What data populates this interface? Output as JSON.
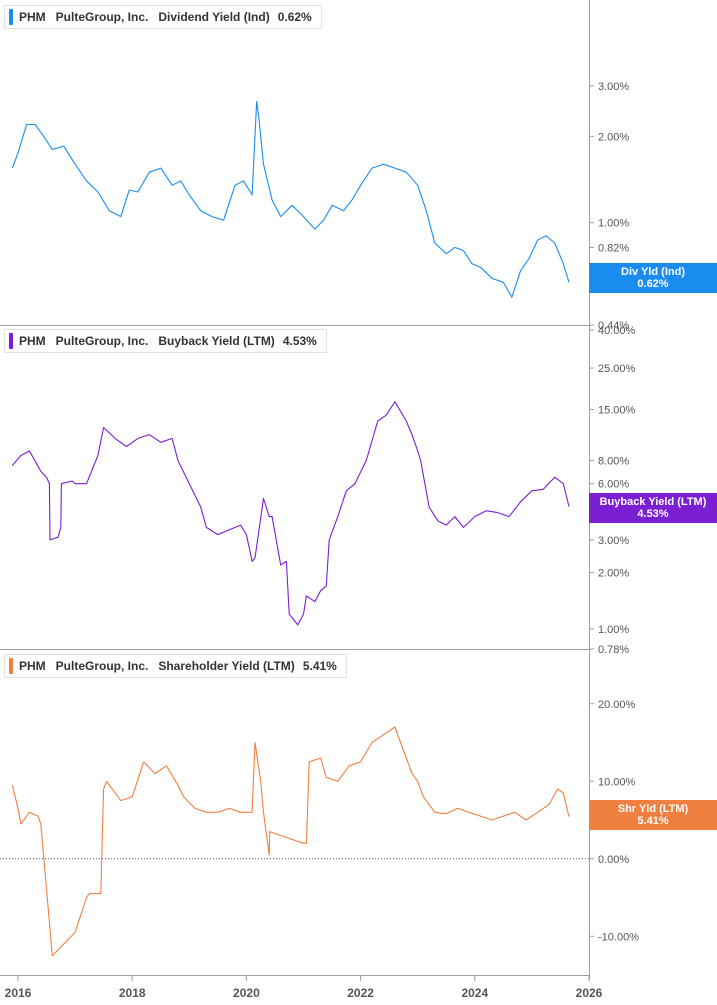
{
  "chart_data": [
    {
      "type": "line",
      "ticker": "PHM",
      "company": "PulteGroup, Inc.",
      "metric": "Dividend Yield (Ind)",
      "current_value_label": "0.62%",
      "badge_label": "Div Yld (Ind)",
      "color": "#1a8cf0",
      "scale": "log",
      "ylim": [
        0.44,
        4.0
      ],
      "yticks": [
        {
          "value": 3.0,
          "label": "3.00%"
        },
        {
          "value": 2.0,
          "label": "2.00%"
        },
        {
          "value": 1.0,
          "label": "1.00%"
        },
        {
          "value": 0.82,
          "label": "0.82%"
        },
        {
          "value": 0.44,
          "label": "0.44%"
        }
      ],
      "series": [
        {
          "x": [
            2015.9,
            2016.0,
            2016.15,
            2016.3,
            2016.45,
            2016.6,
            2016.8,
            2017.0,
            2017.2,
            2017.4,
            2017.6,
            2017.8,
            2017.95,
            2018.1,
            2018.3,
            2018.5,
            2018.7,
            2018.85,
            2019.0,
            2019.2,
            2019.4,
            2019.6,
            2019.8,
            2019.95,
            2020.1,
            2020.18,
            2020.22,
            2020.3,
            2020.45,
            2020.6,
            2020.8,
            2021.0,
            2021.2,
            2021.35,
            2021.5,
            2021.7,
            2021.85,
            2022.0,
            2022.2,
            2022.4,
            2022.6,
            2022.8,
            2023.0,
            2023.15,
            2023.3,
            2023.5,
            2023.65,
            2023.8,
            2023.95,
            2024.1,
            2024.3,
            2024.5,
            2024.65,
            2024.8,
            2024.95,
            2025.1,
            2025.25,
            2025.4,
            2025.55,
            2025.65
          ],
          "values": [
            1.55,
            1.75,
            2.2,
            2.2,
            2.0,
            1.8,
            1.85,
            1.6,
            1.4,
            1.28,
            1.1,
            1.05,
            1.3,
            1.28,
            1.5,
            1.55,
            1.35,
            1.4,
            1.25,
            1.1,
            1.05,
            1.02,
            1.35,
            1.4,
            1.25,
            2.65,
            2.3,
            1.6,
            1.2,
            1.05,
            1.15,
            1.05,
            0.95,
            1.02,
            1.15,
            1.1,
            1.2,
            1.35,
            1.55,
            1.6,
            1.55,
            1.5,
            1.35,
            1.1,
            0.85,
            0.78,
            0.82,
            0.8,
            0.72,
            0.7,
            0.64,
            0.62,
            0.55,
            0.68,
            0.75,
            0.87,
            0.9,
            0.85,
            0.72,
            0.62
          ]
        }
      ]
    },
    {
      "type": "line",
      "ticker": "PHM",
      "company": "PulteGroup, Inc.",
      "metric": "Buyback Yield (LTM)",
      "current_value_label": "4.53%",
      "badge_label": "Buyback Yield (LTM)",
      "color": "#7a1fd2",
      "scale": "log",
      "ylim": [
        0.78,
        40.0
      ],
      "yticks": [
        {
          "value": 40.0,
          "label": "40.00%"
        },
        {
          "value": 25.0,
          "label": "25.00%"
        },
        {
          "value": 15.0,
          "label": "15.00%"
        },
        {
          "value": 8.0,
          "label": "8.00%"
        },
        {
          "value": 6.0,
          "label": "6.00%"
        },
        {
          "value": 3.0,
          "label": "3.00%"
        },
        {
          "value": 2.0,
          "label": "2.00%"
        },
        {
          "value": 1.0,
          "label": "1.00%"
        },
        {
          "value": 0.78,
          "label": "0.78%"
        }
      ],
      "series": [
        {
          "x": [
            2015.9,
            2016.05,
            2016.2,
            2016.4,
            2016.5,
            2016.55,
            2016.56,
            2016.7,
            2016.75,
            2016.76,
            2016.95,
            2017.0,
            2017.2,
            2017.4,
            2017.5,
            2017.7,
            2017.9,
            2018.1,
            2018.3,
            2018.5,
            2018.7,
            2018.8,
            2019.0,
            2019.2,
            2019.3,
            2019.5,
            2019.7,
            2019.9,
            2020.0,
            2020.1,
            2020.15,
            2020.3,
            2020.4,
            2020.45,
            2020.6,
            2020.7,
            2020.75,
            2020.9,
            2021.0,
            2021.05,
            2021.2,
            2021.3,
            2021.4,
            2021.45,
            2021.6,
            2021.75,
            2021.9,
            2022.1,
            2022.3,
            2022.45,
            2022.6,
            2022.8,
            2022.9,
            2023.0,
            2023.05,
            2023.2,
            2023.35,
            2023.5,
            2023.65,
            2023.8,
            2024.0,
            2024.2,
            2024.4,
            2024.6,
            2024.8,
            2025.0,
            2025.2,
            2025.4,
            2025.55,
            2025.65
          ],
          "values": [
            7.5,
            8.5,
            9.0,
            7.0,
            6.5,
            6.0,
            3.0,
            3.1,
            3.5,
            6.0,
            6.2,
            6.0,
            6.0,
            8.5,
            12.0,
            10.5,
            9.5,
            10.5,
            11.0,
            10.0,
            10.5,
            8.0,
            6.0,
            4.5,
            3.5,
            3.2,
            3.4,
            3.6,
            3.2,
            2.3,
            2.4,
            5.0,
            4.0,
            4.0,
            2.2,
            2.3,
            1.2,
            1.05,
            1.2,
            1.5,
            1.4,
            1.6,
            1.7,
            3.0,
            4.0,
            5.5,
            6.0,
            8.0,
            13.0,
            14.0,
            16.5,
            13.0,
            11.0,
            9.0,
            8.0,
            4.5,
            3.8,
            3.6,
            4.0,
            3.5,
            4.0,
            4.3,
            4.2,
            4.0,
            4.8,
            5.5,
            5.6,
            6.5,
            6.0,
            4.53
          ]
        }
      ]
    },
    {
      "type": "line",
      "ticker": "PHM",
      "company": "PulteGroup, Inc.",
      "metric": "Shareholder Yield (LTM)",
      "current_value_label": "5.41%",
      "badge_label": "Shr Yld (LTM)",
      "color": "#f08040",
      "scale": "linear",
      "ylim": [
        -15.0,
        25.0
      ],
      "zero_line": true,
      "yticks": [
        {
          "value": 20.0,
          "label": "20.00%"
        },
        {
          "value": 10.0,
          "label": "10.00%"
        },
        {
          "value": 0.0,
          "label": "0.00%"
        },
        {
          "value": -10.0,
          "label": "-10.00%"
        }
      ],
      "series": [
        {
          "x": [
            2015.9,
            2016.0,
            2016.05,
            2016.2,
            2016.35,
            2016.4,
            2016.6,
            2016.8,
            2017.0,
            2017.2,
            2017.25,
            2017.45,
            2017.5,
            2017.55,
            2017.8,
            2018.0,
            2018.2,
            2018.4,
            2018.6,
            2018.8,
            2018.9,
            2019.1,
            2019.3,
            2019.5,
            2019.7,
            2019.9,
            2020.1,
            2020.15,
            2020.25,
            2020.3,
            2020.4,
            2020.41,
            2020.6,
            2020.8,
            2021.0,
            2021.05,
            2021.1,
            2021.3,
            2021.4,
            2021.6,
            2021.8,
            2022.0,
            2022.2,
            2022.4,
            2022.6,
            2022.8,
            2022.9,
            2023.0,
            2023.1,
            2023.3,
            2023.5,
            2023.7,
            2023.9,
            2024.1,
            2024.3,
            2024.5,
            2024.7,
            2024.9,
            2025.1,
            2025.3,
            2025.45,
            2025.55,
            2025.65
          ],
          "values": [
            9.5,
            6.5,
            4.5,
            6.0,
            5.5,
            4.5,
            -12.5,
            -11.0,
            -9.5,
            -5.0,
            -4.5,
            -4.5,
            9.0,
            10.0,
            7.5,
            8.0,
            12.5,
            11.0,
            12.0,
            9.5,
            8.0,
            6.5,
            6.0,
            6.0,
            6.5,
            6.0,
            6.0,
            15.0,
            10.0,
            6.0,
            0.5,
            3.5,
            3.0,
            2.5,
            2.0,
            2.0,
            12.5,
            13.0,
            10.5,
            10.0,
            12.0,
            12.5,
            15.0,
            16.0,
            17.0,
            13.0,
            11.0,
            10.0,
            8.0,
            6.0,
            5.8,
            6.5,
            6.0,
            5.5,
            5.0,
            5.5,
            6.0,
            5.0,
            6.0,
            7.0,
            9.0,
            8.5,
            5.41
          ]
        }
      ]
    }
  ],
  "x_axis": {
    "ticks": [
      {
        "value": 2016,
        "label": "2016"
      },
      {
        "value": 2018,
        "label": "2018"
      },
      {
        "value": 2020,
        "label": "2020"
      },
      {
        "value": 2022,
        "label": "2022"
      },
      {
        "value": 2024,
        "label": "2024"
      },
      {
        "value": 2026,
        "label": "2026"
      }
    ],
    "xlim": [
      2015.9,
      2026.0
    ]
  },
  "colors": {
    "axis": "#9e9e9e",
    "text": "#333333",
    "tick_text": "#555555"
  }
}
